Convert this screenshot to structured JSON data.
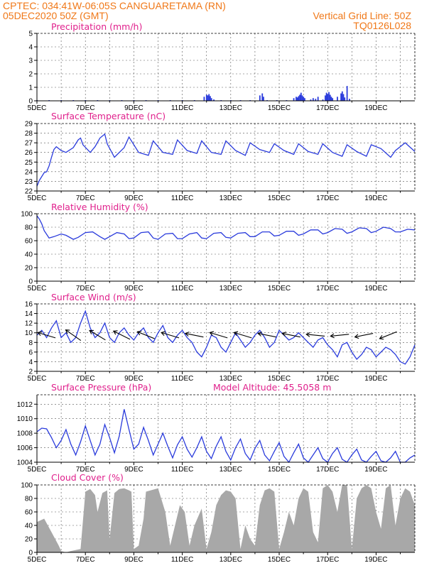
{
  "header": {
    "line1": "CPTEC:   034:41W-06:05S   CANGUARETAMA (RN)",
    "line2": "05DEC2020 50Z (GMT)",
    "grid_note": "Vertical Grid Line: 50Z",
    "code": "TQ0126L028"
  },
  "colors": {
    "header": "#f07818",
    "title": "#e0208c",
    "series": "#2a3bdc",
    "cloud": "#a8a8a8",
    "arrows": "#000000"
  },
  "x_tick_labels": [
    "5DEC",
    "7DEC",
    "9DEC",
    "11DEC",
    "13DEC",
    "15DEC",
    "17DEC",
    "19DEC"
  ],
  "chart_data": [
    {
      "type": "bar",
      "title": "Precipitation (mm/h)",
      "x_unit": "days since 5DEC 00Z",
      "ylim": [
        0,
        5
      ],
      "yticks": [
        0,
        1,
        2,
        3,
        4,
        5
      ],
      "x": [
        0.0,
        0.5,
        1.0,
        1.5,
        2.0,
        2.5,
        3.0,
        3.5,
        4.0,
        4.5,
        5.0,
        5.5,
        6.0,
        6.5,
        6.9,
        7.0,
        7.05,
        7.1,
        7.15,
        7.2,
        7.3,
        7.6,
        8.0,
        8.4,
        8.8,
        9.2,
        9.3,
        9.35,
        9.5,
        9.9,
        10.3,
        10.6,
        10.7,
        10.75,
        10.8,
        10.85,
        10.9,
        10.95,
        11.0,
        11.05,
        11.3,
        11.4,
        11.5,
        11.6,
        11.8,
        11.9,
        11.95,
        12.0,
        12.05,
        12.1,
        12.15,
        12.2,
        12.4,
        12.55,
        12.6,
        12.65,
        12.7,
        12.8,
        12.9
      ],
      "values": [
        0.05,
        0.05,
        0.05,
        0.05,
        0.05,
        0.05,
        0.05,
        0.05,
        0.05,
        0.05,
        0.05,
        0.05,
        0.05,
        0.05,
        0.3,
        0.45,
        0.4,
        0.5,
        0.35,
        0.2,
        0.1,
        0.05,
        0.05,
        0.05,
        0.05,
        0.4,
        0.55,
        0.3,
        0.05,
        0.05,
        0.05,
        0.2,
        0.3,
        0.25,
        0.35,
        0.45,
        0.6,
        0.4,
        0.3,
        0.2,
        0.1,
        0.2,
        0.15,
        0.3,
        0.1,
        0.4,
        0.6,
        0.5,
        0.65,
        0.45,
        0.3,
        0.2,
        0.3,
        0.55,
        0.7,
        0.5,
        0.25,
        1.1,
        0.15
      ]
    },
    {
      "type": "line",
      "title": "Surface Temperature (nC)",
      "x_unit": "days since 5DEC 00Z",
      "ylim": [
        22,
        29
      ],
      "yticks": [
        22,
        23,
        24,
        25,
        26,
        27,
        28,
        29
      ],
      "series": [
        {
          "name": "",
          "x": [
            0.0,
            0.1,
            0.2,
            0.3,
            0.4,
            0.5,
            0.6,
            0.7,
            0.8,
            1.0,
            1.2,
            1.5,
            1.7,
            1.8,
            1.9,
            2.2,
            2.4,
            2.6,
            2.8,
            2.9,
            3.2,
            3.6,
            3.8,
            4.2,
            4.6,
            4.8,
            5.2,
            5.6,
            5.8,
            6.2,
            6.6,
            6.8,
            7.2,
            7.6,
            7.8,
            8.2,
            8.6,
            8.8,
            9.2,
            9.6,
            9.8,
            10.2,
            10.6,
            10.8,
            11.2,
            11.6,
            11.8,
            12.2,
            12.6,
            12.8,
            13.2,
            13.6,
            13.8,
            14.2,
            14.6,
            14.8,
            15.2,
            15.6
          ],
          "values": [
            22.5,
            23.1,
            23.5,
            23.9,
            24.0,
            24.6,
            25.5,
            26.3,
            26.6,
            26.2,
            26.0,
            26.5,
            27.3,
            27.5,
            26.8,
            26.0,
            26.6,
            27.5,
            27.9,
            26.9,
            25.5,
            26.5,
            27.6,
            26.0,
            25.7,
            27.2,
            26.0,
            25.8,
            27.3,
            26.2,
            25.9,
            27.2,
            26.0,
            25.8,
            27.2,
            26.2,
            25.7,
            27.0,
            26.3,
            26.0,
            26.9,
            26.2,
            25.8,
            26.9,
            26.1,
            25.8,
            26.9,
            26.0,
            25.6,
            26.8,
            26.1,
            25.6,
            26.8,
            26.4,
            25.5,
            26.2,
            27.0,
            26.1
          ]
        }
      ]
    },
    {
      "type": "line",
      "title": "Relative Humidity (%)",
      "x_unit": "days since 5DEC 00Z",
      "ylim": [
        0,
        100
      ],
      "yticks": [
        0,
        20,
        40,
        60,
        80,
        100
      ],
      "series": [
        {
          "name": "",
          "x": [
            0.0,
            0.1,
            0.2,
            0.3,
            0.5,
            0.7,
            1.0,
            1.2,
            1.5,
            1.7,
            2.0,
            2.3,
            2.6,
            2.8,
            3.0,
            3.3,
            3.6,
            3.8,
            4.0,
            4.3,
            4.6,
            4.8,
            5.0,
            5.3,
            5.6,
            5.8,
            6.0,
            6.3,
            6.6,
            6.8,
            7.0,
            7.3,
            7.6,
            7.8,
            8.0,
            8.3,
            8.6,
            8.8,
            9.0,
            9.3,
            9.6,
            9.8,
            10.0,
            10.3,
            10.6,
            10.8,
            11.0,
            11.3,
            11.6,
            11.8,
            12.0,
            12.3,
            12.6,
            12.8,
            13.0,
            13.3,
            13.6,
            13.8,
            14.0,
            14.3,
            14.6,
            14.8,
            15.0,
            15.3,
            15.6
          ],
          "values": [
            97,
            92,
            85,
            75,
            64,
            66,
            70,
            68,
            62,
            65,
            72,
            73,
            66,
            62,
            66,
            72,
            70,
            63,
            64,
            72,
            73,
            64,
            62,
            70,
            71,
            63,
            63,
            70,
            72,
            64,
            63,
            71,
            72,
            65,
            64,
            71,
            72,
            66,
            66,
            73,
            73,
            67,
            68,
            74,
            74,
            68,
            70,
            76,
            76,
            70,
            72,
            78,
            77,
            71,
            73,
            79,
            78,
            72,
            74,
            80,
            78,
            73,
            73,
            77,
            76
          ]
        }
      ]
    },
    {
      "type": "line",
      "title": "Surface Wind (m/s)",
      "x_unit": "days since 5DEC 00Z",
      "ylim": [
        2,
        16
      ],
      "yticks": [
        2,
        4,
        6,
        8,
        10,
        12,
        14,
        16
      ],
      "series": [
        {
          "name": "",
          "x": [
            0.0,
            0.2,
            0.4,
            0.6,
            0.8,
            1.0,
            1.2,
            1.4,
            1.6,
            1.8,
            2.0,
            2.2,
            2.4,
            2.6,
            2.8,
            3.0,
            3.2,
            3.4,
            3.6,
            3.8,
            4.0,
            4.2,
            4.4,
            4.6,
            4.8,
            5.0,
            5.2,
            5.4,
            5.6,
            5.8,
            6.0,
            6.2,
            6.4,
            6.6,
            6.8,
            7.0,
            7.2,
            7.4,
            7.6,
            7.8,
            8.0,
            8.2,
            8.4,
            8.6,
            8.8,
            9.0,
            9.2,
            9.4,
            9.6,
            9.8,
            10.0,
            10.2,
            10.4,
            10.6,
            10.8,
            11.0,
            11.2,
            11.4,
            11.6,
            11.8,
            12.0,
            12.2,
            12.4,
            12.6,
            12.8,
            13.0,
            13.2,
            13.4,
            13.6,
            13.8,
            14.0,
            14.2,
            14.4,
            14.6,
            14.8,
            15.0,
            15.2,
            15.4,
            15.6
          ],
          "values": [
            9.5,
            10.5,
            9.0,
            11.0,
            12.5,
            9.0,
            10.0,
            8.0,
            9.0,
            12.0,
            14.5,
            11.0,
            9.0,
            10.0,
            12.0,
            9.0,
            8.0,
            10.0,
            11.0,
            9.5,
            8.5,
            10.0,
            11.0,
            9.0,
            8.0,
            10.0,
            11.5,
            9.0,
            8.0,
            9.5,
            10.5,
            9.0,
            8.0,
            6.0,
            5.0,
            7.0,
            9.5,
            9.0,
            7.0,
            6.0,
            8.0,
            10.0,
            8.5,
            7.0,
            8.0,
            9.5,
            10.5,
            9.0,
            7.0,
            8.0,
            10.5,
            9.5,
            8.5,
            9.0,
            10.0,
            9.0,
            8.0,
            7.0,
            8.5,
            9.0,
            7.5,
            6.5,
            5.0,
            7.5,
            8.0,
            6.0,
            4.5,
            5.5,
            7.0,
            6.5,
            5.0,
            6.0,
            7.0,
            6.5,
            5.5,
            4.0,
            3.5,
            5.0,
            7.5
          ]
        }
      ],
      "wind_barbs": [
        {
          "x": 0.4,
          "u": -1.0,
          "v": 0.3
        },
        {
          "x": 1.5,
          "u": -1.0,
          "v": 0.7
        },
        {
          "x": 2.5,
          "u": -1.0,
          "v": 0.6
        },
        {
          "x": 3.5,
          "u": -1.0,
          "v": 0.5
        },
        {
          "x": 4.5,
          "u": -1.0,
          "v": 0.4
        },
        {
          "x": 5.5,
          "u": -1.0,
          "v": 0.3
        },
        {
          "x": 6.5,
          "u": -1.0,
          "v": 0.2
        },
        {
          "x": 7.5,
          "u": -1.0,
          "v": 0.3
        },
        {
          "x": 8.5,
          "u": -1.0,
          "v": 0.3
        },
        {
          "x": 9.5,
          "u": -1.0,
          "v": 0.2
        },
        {
          "x": 10.5,
          "u": -1.0,
          "v": 0.2
        },
        {
          "x": 11.5,
          "u": -1.0,
          "v": 0.1
        },
        {
          "x": 12.5,
          "u": -1.0,
          "v": -0.1
        },
        {
          "x": 13.5,
          "u": -1.0,
          "v": -0.2
        },
        {
          "x": 14.5,
          "u": -1.0,
          "v": -0.4
        }
      ]
    },
    {
      "type": "line",
      "title": "Surface Pressure (hPa)",
      "annotation": "Model Altitude: 45.5058  m",
      "x_unit": "days since 5DEC 00Z",
      "ylim": [
        1004,
        1013.3
      ],
      "yticks": [
        1004,
        1006,
        1008,
        1010,
        1012
      ],
      "series": [
        {
          "name": "",
          "x": [
            0.0,
            0.2,
            0.4,
            0.6,
            0.8,
            1.0,
            1.2,
            1.4,
            1.6,
            1.8,
            2.0,
            2.2,
            2.4,
            2.6,
            2.8,
            3.0,
            3.2,
            3.4,
            3.6,
            3.8,
            4.0,
            4.2,
            4.4,
            4.6,
            4.8,
            5.0,
            5.2,
            5.4,
            5.6,
            5.8,
            6.0,
            6.2,
            6.4,
            6.6,
            6.8,
            7.0,
            7.2,
            7.4,
            7.6,
            7.8,
            8.0,
            8.2,
            8.4,
            8.6,
            8.8,
            9.0,
            9.2,
            9.4,
            9.6,
            9.8,
            10.0,
            10.2,
            10.4,
            10.6,
            10.8,
            11.0,
            11.2,
            11.4,
            11.6,
            11.8,
            12.0,
            12.2,
            12.4,
            12.6,
            12.8,
            13.0,
            13.2,
            13.4,
            13.6,
            13.8,
            14.0,
            14.2,
            14.4,
            14.6,
            14.8,
            15.0,
            15.2,
            15.4,
            15.6
          ],
          "values": [
            1008.2,
            1008.7,
            1008.6,
            1007.4,
            1006.0,
            1007.0,
            1008.5,
            1006.5,
            1005.0,
            1006.8,
            1009.0,
            1007.0,
            1005.0,
            1006.5,
            1009.2,
            1007.4,
            1005.3,
            1007.6,
            1011.3,
            1008.5,
            1005.8,
            1006.5,
            1008.8,
            1007.0,
            1005.0,
            1006.5,
            1008.0,
            1006.2,
            1004.6,
            1006.4,
            1007.5,
            1005.8,
            1004.7,
            1006.0,
            1007.5,
            1005.5,
            1004.5,
            1006.2,
            1007.5,
            1005.5,
            1004.3,
            1006.0,
            1007.2,
            1005.2,
            1004.3,
            1005.9,
            1007.0,
            1005.0,
            1004.2,
            1005.5,
            1006.7,
            1004.8,
            1004.0,
            1005.3,
            1006.5,
            1004.6,
            1004.0,
            1005.0,
            1006.0,
            1004.5,
            1003.8,
            1005.2,
            1006.0,
            1004.4,
            1003.8,
            1005.0,
            1005.8,
            1004.3,
            1003.6,
            1004.8,
            1005.5,
            1004.2,
            1003.5,
            1004.6,
            1005.5,
            1004.0,
            1003.6,
            1004.6,
            1005.0
          ]
        }
      ]
    },
    {
      "type": "area",
      "title": "Cloud Cover (%)",
      "x_unit": "days since 5DEC 00Z",
      "ylim": [
        0,
        100
      ],
      "yticks": [
        0,
        20,
        40,
        60,
        80,
        100
      ],
      "x": [
        0.0,
        0.3,
        0.6,
        0.9,
        1.0,
        1.2,
        1.4,
        1.8,
        2.0,
        2.2,
        2.4,
        2.5,
        2.7,
        2.9,
        3.0,
        3.2,
        3.4,
        3.6,
        3.8,
        3.9,
        4.0,
        4.2,
        4.4,
        4.5,
        4.8,
        5.0,
        5.3,
        5.5,
        5.7,
        5.9,
        6.1,
        6.3,
        6.5,
        6.8,
        7.0,
        7.2,
        7.4,
        7.6,
        7.8,
        8.0,
        8.2,
        8.4,
        8.6,
        8.8,
        9.0,
        9.2,
        9.4,
        9.6,
        9.8,
        10.0,
        10.2,
        10.4,
        10.6,
        10.8,
        11.0,
        11.2,
        11.4,
        11.6,
        11.8,
        12.0,
        12.2,
        12.4,
        12.6,
        12.8,
        13.0,
        13.2,
        13.4,
        13.6,
        13.8,
        14.0,
        14.2,
        14.4,
        14.6,
        14.8,
        15.0,
        15.2,
        15.4,
        15.6
      ],
      "values": [
        45,
        50,
        30,
        10,
        2,
        0,
        2,
        5,
        90,
        94,
        85,
        60,
        88,
        92,
        20,
        88,
        94,
        95,
        92,
        90,
        5,
        10,
        50,
        90,
        93,
        95,
        60,
        10,
        40,
        70,
        60,
        10,
        40,
        65,
        5,
        30,
        70,
        85,
        92,
        90,
        80,
        5,
        40,
        20,
        10,
        70,
        92,
        95,
        90,
        5,
        30,
        60,
        40,
        80,
        95,
        90,
        30,
        15,
        95,
        100,
        90,
        60,
        100,
        100,
        5,
        80,
        95,
        100,
        95,
        60,
        35,
        95,
        100,
        40,
        80,
        95,
        90,
        70
      ]
    }
  ]
}
